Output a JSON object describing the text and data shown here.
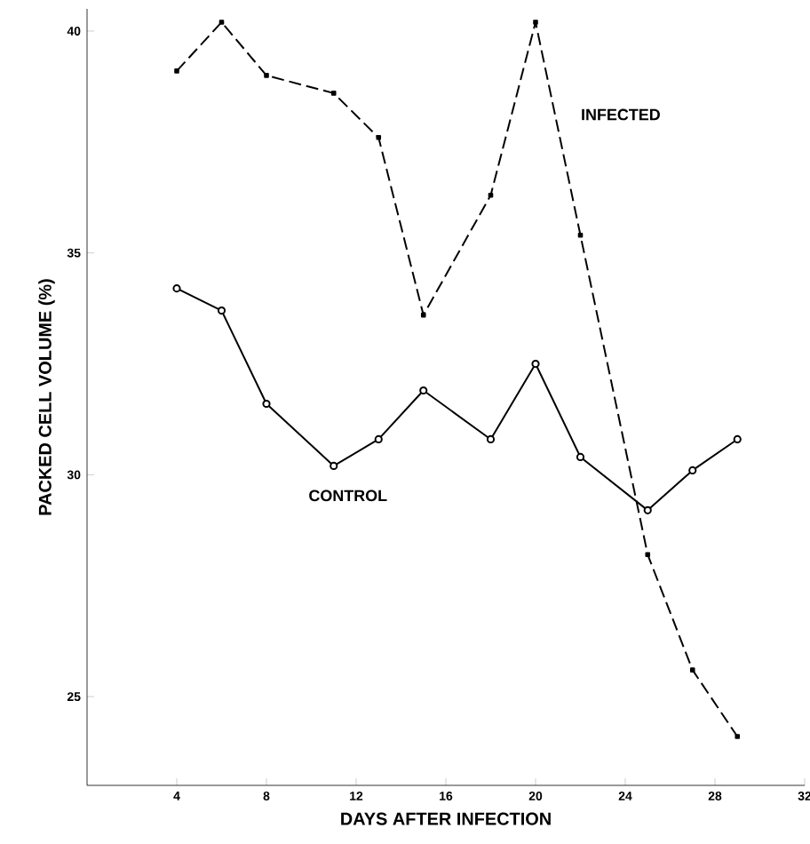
{
  "chart_data": {
    "type": "line",
    "xlabel": "DAYS AFTER INFECTION",
    "ylabel": "PACKED CELL VOLUME (%)",
    "xlim": [
      0,
      32
    ],
    "ylim": [
      23,
      40.5
    ],
    "xticks": [
      4,
      8,
      12,
      16,
      20,
      24,
      28,
      32
    ],
    "yticks": [
      25,
      30,
      35,
      40
    ],
    "grid": false,
    "legend": false,
    "series": [
      {
        "name": "INFECTED",
        "color": "#000000",
        "marker": "square",
        "line_style": "dashed",
        "x": [
          4,
          6,
          8,
          11,
          13,
          15,
          18,
          20,
          22,
          25,
          27,
          29
        ],
        "values": [
          39.1,
          40.2,
          39.0,
          38.6,
          37.6,
          33.6,
          36.3,
          40.2,
          35.4,
          28.2,
          25.6,
          24.1
        ]
      },
      {
        "name": "CONTROL",
        "color": "#000000",
        "marker": "circle",
        "line_style": "solid",
        "x": [
          4,
          6,
          8,
          11,
          13,
          15,
          18,
          20,
          22,
          25,
          27,
          29
        ],
        "values": [
          34.2,
          33.7,
          31.6,
          30.2,
          30.8,
          31.9,
          30.8,
          32.5,
          30.4,
          29.2,
          30.1,
          30.8
        ]
      }
    ]
  }
}
